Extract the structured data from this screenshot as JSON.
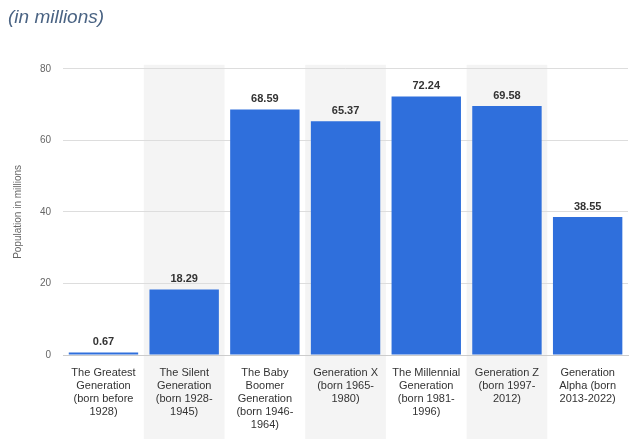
{
  "chart_data": {
    "type": "bar",
    "title": "(in millions)",
    "y_label": "Population in millions",
    "categories": [
      "The Greatest Generation (born before 1928)",
      "The Silent Generation (born 1928-1945)",
      "The Baby Boomer Generation (born 1946-1964)",
      "Generation X (born 1965-1980)",
      "The Millennial Generation (born 1981-1996)",
      "Generation Z (born 1997-2012)",
      "Generation Alpha (born 2013-2022)"
    ],
    "values": [
      0.67,
      18.29,
      68.59,
      65.37,
      72.24,
      69.58,
      38.55
    ],
    "color": "#2f6fdc",
    "ylim": [
      0,
      80
    ],
    "yticks": [
      0,
      20,
      40,
      60,
      80
    ],
    "grid": true,
    "data_labels": true
  }
}
